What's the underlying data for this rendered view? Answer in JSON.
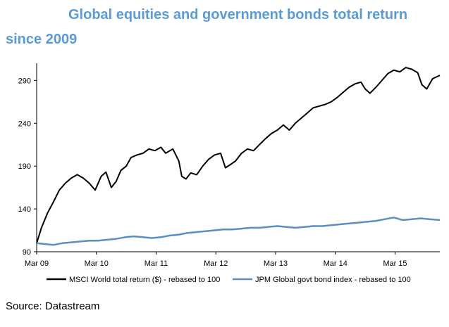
{
  "title_line1": "Global equities and government bonds total return",
  "title_line2": "since 2009",
  "source": "Source: Datastream",
  "chart_data": {
    "type": "line",
    "title": "Global equities and government bonds total return since 2009",
    "x_tick_labels": [
      "Mar 09",
      "Mar 10",
      "Mar 11",
      "Mar 12",
      "Mar 13",
      "Mar 14",
      "Mar 15"
    ],
    "y_ticks": [
      90,
      140,
      190,
      240,
      290
    ],
    "ylim": [
      90,
      310
    ],
    "x_range_years": [
      2009.17,
      2015.92
    ],
    "grid": false,
    "legend_position": "bottom",
    "series": [
      {
        "name": "MSCI World total return ($) - rebased to 100",
        "color": "#000000",
        "x": [
          2009.17,
          2009.25,
          2009.35,
          2009.45,
          2009.55,
          2009.65,
          2009.75,
          2009.85,
          2009.95,
          2010.05,
          2010.15,
          2010.25,
          2010.33,
          2010.42,
          2010.5,
          2010.58,
          2010.67,
          2010.75,
          2010.85,
          2010.95,
          2011.05,
          2011.15,
          2011.25,
          2011.33,
          2011.45,
          2011.55,
          2011.6,
          2011.67,
          2011.75,
          2011.85,
          2011.95,
          2012.05,
          2012.15,
          2012.25,
          2012.33,
          2012.42,
          2012.5,
          2012.6,
          2012.7,
          2012.8,
          2012.9,
          2013.0,
          2013.1,
          2013.2,
          2013.3,
          2013.4,
          2013.5,
          2013.6,
          2013.7,
          2013.8,
          2013.9,
          2014.0,
          2014.1,
          2014.2,
          2014.3,
          2014.4,
          2014.5,
          2014.6,
          2014.67,
          2014.75,
          2014.85,
          2014.95,
          2015.05,
          2015.15,
          2015.25,
          2015.35,
          2015.45,
          2015.55,
          2015.62,
          2015.7,
          2015.8,
          2015.92
        ],
        "y": [
          100,
          118,
          135,
          148,
          162,
          170,
          176,
          180,
          176,
          170,
          162,
          178,
          183,
          165,
          172,
          185,
          190,
          200,
          203,
          205,
          210,
          208,
          212,
          205,
          210,
          196,
          178,
          175,
          182,
          180,
          190,
          198,
          203,
          205,
          188,
          192,
          196,
          205,
          210,
          208,
          215,
          222,
          228,
          232,
          238,
          232,
          240,
          246,
          252,
          258,
          260,
          262,
          265,
          270,
          276,
          282,
          286,
          288,
          280,
          275,
          282,
          290,
          298,
          302,
          300,
          305,
          303,
          299,
          285,
          280,
          292,
          296
        ]
      },
      {
        "name": "JPM Global govt bond index - rebased to 100",
        "color": "#5b8fc2",
        "x": [
          2009.17,
          2009.3,
          2009.45,
          2009.6,
          2009.75,
          2009.9,
          2010.05,
          2010.2,
          2010.35,
          2010.5,
          2010.65,
          2010.8,
          2010.95,
          2011.1,
          2011.25,
          2011.4,
          2011.55,
          2011.7,
          2011.85,
          2012.0,
          2012.15,
          2012.3,
          2012.45,
          2012.6,
          2012.75,
          2012.9,
          2013.05,
          2013.2,
          2013.35,
          2013.5,
          2013.65,
          2013.8,
          2013.95,
          2014.1,
          2014.25,
          2014.4,
          2014.55,
          2014.7,
          2014.85,
          2015.0,
          2015.15,
          2015.3,
          2015.45,
          2015.6,
          2015.75,
          2015.92
        ],
        "y": [
          100,
          99,
          98,
          100,
          101,
          102,
          103,
          103,
          104,
          105,
          107,
          108,
          107,
          106,
          107,
          109,
          110,
          112,
          113,
          114,
          115,
          116,
          116,
          117,
          118,
          118,
          119,
          120,
          119,
          118,
          119,
          120,
          120,
          121,
          122,
          123,
          124,
          125,
          126,
          128,
          130,
          127,
          128,
          129,
          128,
          127
        ]
      }
    ]
  }
}
